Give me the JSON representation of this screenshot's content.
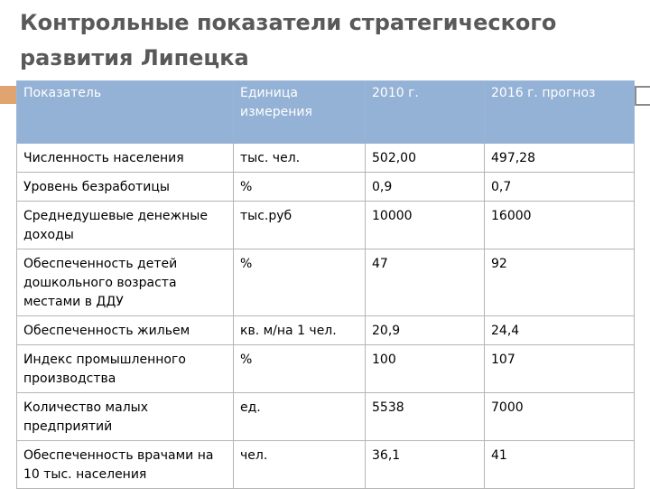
{
  "title": "Контрольные показатели стратегического развития Липецка",
  "table": {
    "headers": [
      "Показатель",
      "Единица измерения",
      "2010 г.",
      "2016 г. прогноз"
    ],
    "rows": [
      [
        "Численность населения",
        "тыс. чел.",
        "502,00",
        "497,28"
      ],
      [
        "Уровень безработицы",
        "%",
        "0,9",
        "0,7"
      ],
      [
        "Среднедушевые денежные доходы",
        "тыс.руб",
        "10000",
        "16000"
      ],
      [
        "Обеспеченность детей дошкольного возраста местами в ДДУ",
        "%",
        "47",
        "92"
      ],
      [
        "Обеспеченность жильем",
        "кв. м/на 1 чел.",
        "20,9",
        "24,4"
      ],
      [
        "Индекс промышленного производства",
        "%",
        "100",
        "107"
      ],
      [
        "Количество малых предприятий",
        "ед.",
        "5538",
        "7000"
      ],
      [
        "Обеспеченность врачами на 10 тыс. населения",
        "чел.",
        "36,1",
        "41"
      ]
    ]
  }
}
